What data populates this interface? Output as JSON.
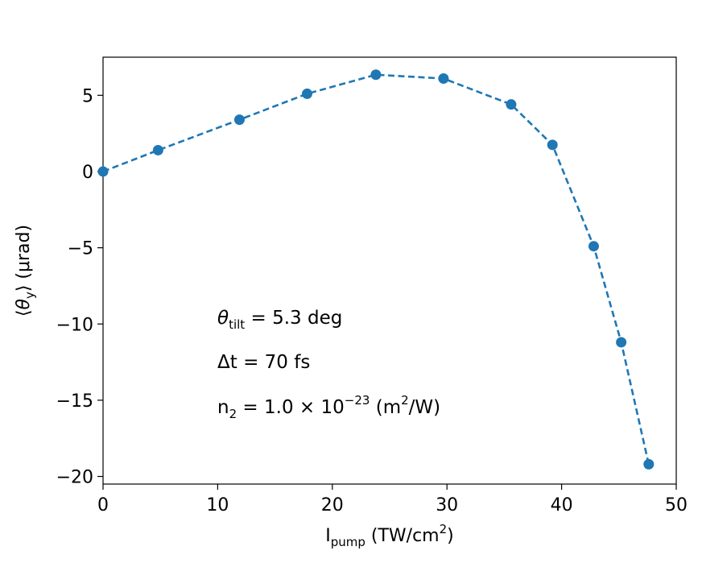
{
  "chart_data": {
    "type": "line",
    "series": [
      {
        "name": "theta_y",
        "x": [
          0,
          4.8,
          11.9,
          17.8,
          23.8,
          29.7,
          35.6,
          39.2,
          42.8,
          45.2,
          47.6
        ],
        "y": [
          0,
          1.4,
          3.4,
          5.1,
          6.35,
          6.1,
          4.4,
          1.75,
          -4.9,
          -11.2,
          -19.2
        ],
        "color": "#1f77b4",
        "line_style": "dashed",
        "marker": "circle"
      }
    ],
    "xlim": [
      0,
      50
    ],
    "ylim": [
      -20.5,
      7.5
    ],
    "xticks": [
      0,
      10,
      20,
      30,
      40,
      50
    ],
    "yticks": [
      5,
      0,
      -5,
      -10,
      -15,
      -20
    ],
    "xtick_labels": [
      "0",
      "10",
      "20",
      "30",
      "40",
      "50"
    ],
    "ytick_labels": [
      "5",
      "0",
      "−5",
      "−10",
      "−15",
      "−20"
    ],
    "xlabel": {
      "main": "I",
      "sub": "pump",
      "rest": " (TW/cm",
      "sup": "2",
      "end": ")"
    },
    "ylabel": {
      "open": "⟨",
      "theta": "θ",
      "sub": "y",
      "close": "⟩ (μrad)"
    },
    "annotations": {
      "tilt": {
        "symbol": "θ",
        "sub": "tilt",
        "text": " = 5.3 deg"
      },
      "dt": {
        "text": "Δt = 70 fs"
      },
      "n2": {
        "main": "n",
        "sub": "2",
        "mid": " = 1.0 × 10",
        "sup": "−23",
        "tail": " (m",
        "sup2": "2",
        "end": "/W)"
      }
    }
  }
}
